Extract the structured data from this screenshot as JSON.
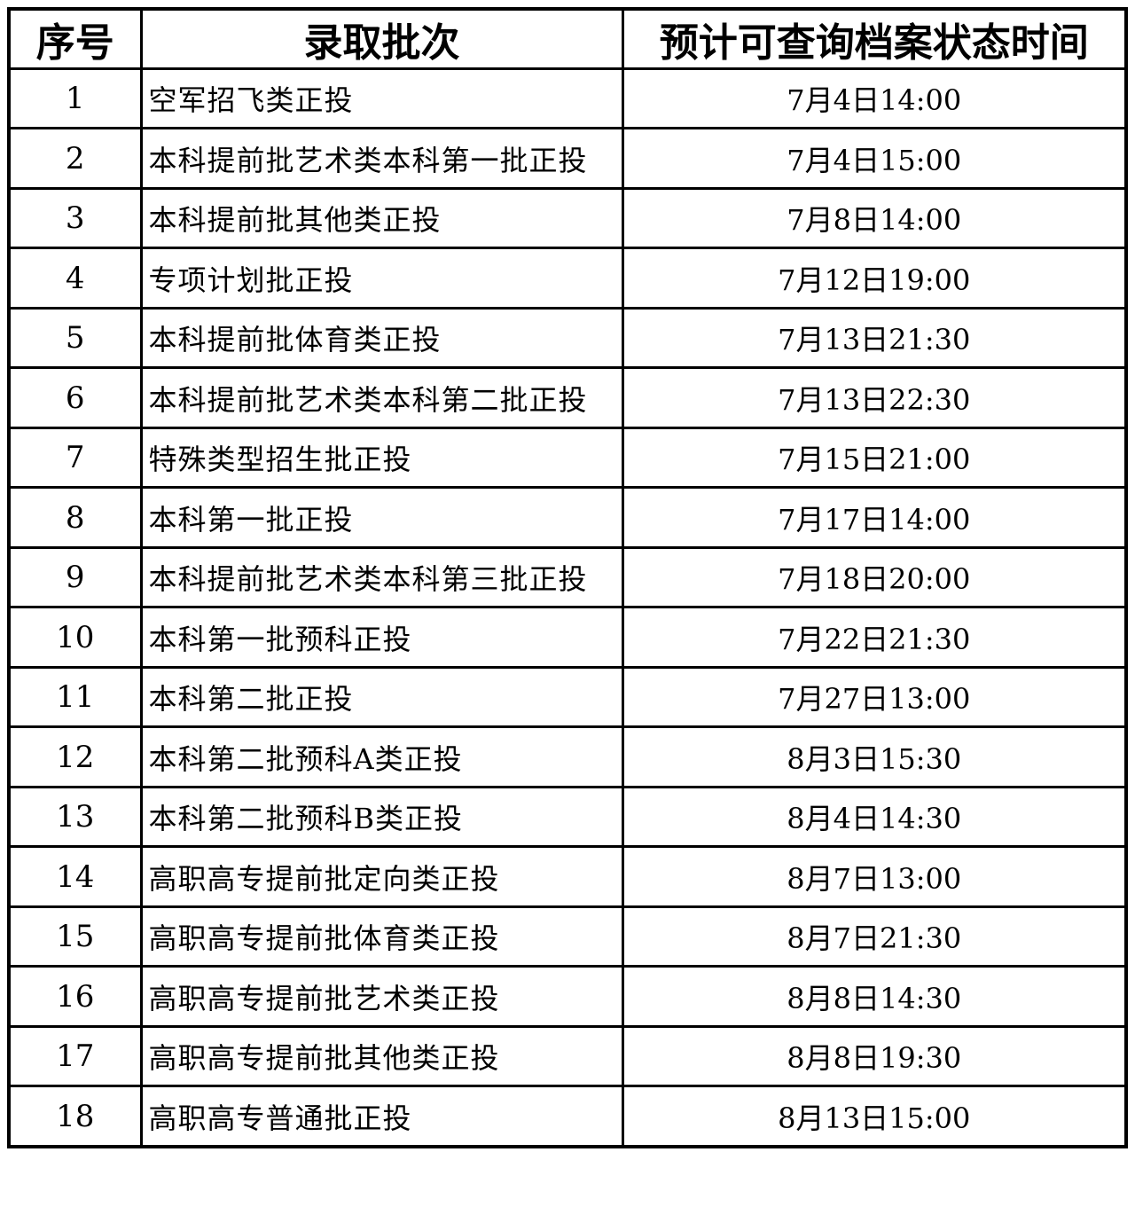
{
  "colors": {
    "border": "#000000",
    "text": "#000000",
    "background": "#ffffff"
  },
  "table": {
    "headers": [
      "序号",
      "录取批次",
      "预计可查询档案状态时间"
    ],
    "rows": [
      {
        "no": "1",
        "batch": "空军招飞类正投",
        "time": "7月4日14:00"
      },
      {
        "no": "2",
        "batch": "本科提前批艺术类本科第一批正投",
        "time": "7月4日15:00"
      },
      {
        "no": "3",
        "batch": "本科提前批其他类正投",
        "time": "7月8日14:00"
      },
      {
        "no": "4",
        "batch": "专项计划批正投",
        "time": "7月12日19:00"
      },
      {
        "no": "5",
        "batch": "本科提前批体育类正投",
        "time": "7月13日21:30"
      },
      {
        "no": "6",
        "batch": "本科提前批艺术类本科第二批正投",
        "time": "7月13日22:30"
      },
      {
        "no": "7",
        "batch": "特殊类型招生批正投",
        "time": "7月15日21:00"
      },
      {
        "no": "8",
        "batch": "本科第一批正投",
        "time": "7月17日14:00"
      },
      {
        "no": "9",
        "batch": "本科提前批艺术类本科第三批正投",
        "time": "7月18日20:00"
      },
      {
        "no": "10",
        "batch": "本科第一批预科正投",
        "time": "7月22日21:30"
      },
      {
        "no": "11",
        "batch": "本科第二批正投",
        "time": "7月27日13:00"
      },
      {
        "no": "12",
        "batch": "本科第二批预科A类正投",
        "time": "8月3日15:30"
      },
      {
        "no": "13",
        "batch": "本科第二批预科B类正投",
        "time": "8月4日14:30"
      },
      {
        "no": "14",
        "batch": "高职高专提前批定向类正投",
        "time": "8月7日13:00"
      },
      {
        "no": "15",
        "batch": "高职高专提前批体育类正投",
        "time": "8月7日21:30"
      },
      {
        "no": "16",
        "batch": "高职高专提前批艺术类正投",
        "time": "8月8日14:30"
      },
      {
        "no": "17",
        "batch": "高职高专提前批其他类正投",
        "time": "8月8日19:30"
      },
      {
        "no": "18",
        "batch": "高职高专普通批正投",
        "time": "8月13日15:00"
      }
    ]
  }
}
